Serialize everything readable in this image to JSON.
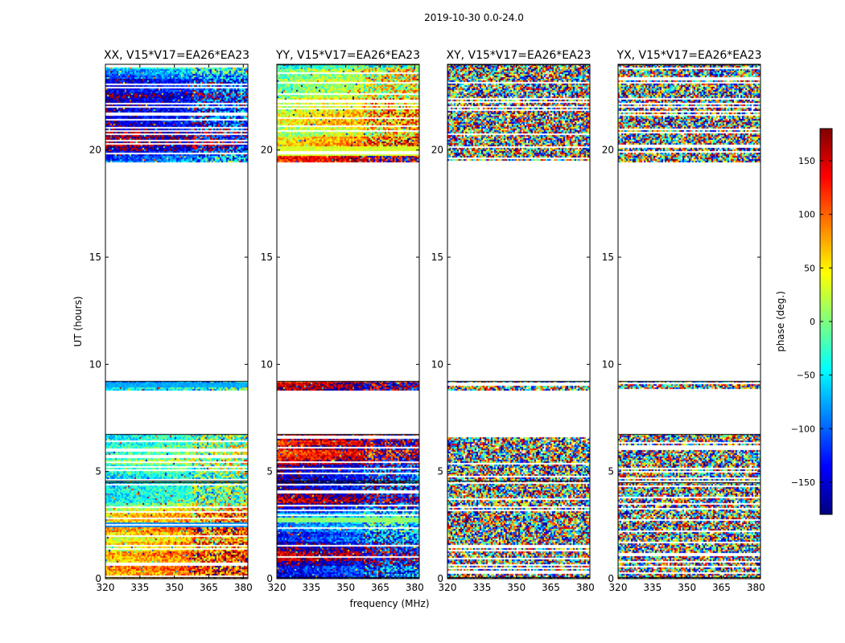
{
  "figure": {
    "suptitle": "2019-10-30 0.0-24.0",
    "xlabel": "frequency (MHz)",
    "ylabel": "UT (hours)"
  },
  "colorbar": {
    "label": "phase (deg.)",
    "range": [
      -180,
      180
    ],
    "ticks": [
      -150,
      -100,
      -50,
      0,
      50,
      100,
      150
    ],
    "tick_labels": [
      "−150",
      "−100",
      "−50",
      "0",
      "50",
      "100",
      "150"
    ],
    "colormap": "jet",
    "colors": [
      "#00007f",
      "#0000ff",
      "#007fff",
      "#00ffff",
      "#7fff7f",
      "#ffff00",
      "#ff7f00",
      "#ff0000",
      "#7f0000"
    ]
  },
  "chart_data": [
    {
      "type": "heatmap",
      "title": "XX, V15*V17=EA26*EA23",
      "xlim": [
        320,
        382
      ],
      "ylim": [
        0,
        24
      ],
      "xticks": [
        320,
        335,
        350,
        365,
        380
      ],
      "yticks": [
        0,
        5,
        10,
        15,
        20
      ],
      "value": "phase (deg.)",
      "data_blocks_ut_hours": [
        [
          0,
          4.5
        ],
        [
          4.5,
          6.75
        ],
        [
          8.75,
          9.2
        ],
        [
          19.4,
          24
        ]
      ],
      "gap_ut_hours": [
        [
          6.75,
          8.75
        ],
        [
          9.2,
          19.4
        ]
      ],
      "character": "coherent phase bands (blue/cyan/green, red stripes near 20-21 h)"
    },
    {
      "type": "heatmap",
      "title": "YY, V15*V17=EA26*EA23",
      "xlim": [
        320,
        382
      ],
      "ylim": [
        0,
        24
      ],
      "xticks": [
        320,
        335,
        350,
        365,
        380
      ],
      "yticks": [
        0,
        5,
        10,
        15,
        20
      ],
      "value": "phase (deg.)",
      "data_blocks_ut_hours": [
        [
          0,
          4.5
        ],
        [
          4.5,
          6.75
        ],
        [
          8.75,
          9.2
        ],
        [
          19.4,
          24
        ]
      ],
      "gap_ut_hours": [
        [
          6.75,
          8.75
        ],
        [
          9.2,
          19.4
        ]
      ],
      "character": "coherent phase bands (blue/red around 3-6 h, cyan/green near 20 h)"
    },
    {
      "type": "heatmap",
      "title": "XY, V15*V17=EA26*EA23",
      "xlim": [
        320,
        382
      ],
      "ylim": [
        0,
        24
      ],
      "xticks": [
        320,
        335,
        350,
        365,
        380
      ],
      "yticks": [
        0,
        5,
        10,
        15,
        20
      ],
      "value": "phase (deg.)",
      "data_blocks_ut_hours": [
        [
          0,
          4.5
        ],
        [
          4.5,
          6.75
        ],
        [
          8.75,
          9.2
        ],
        [
          19.4,
          24
        ]
      ],
      "gap_ut_hours": [
        [
          6.75,
          8.75
        ],
        [
          9.2,
          19.4
        ]
      ],
      "character": "noise-like random phase"
    },
    {
      "type": "heatmap",
      "title": "YX, V15*V17=EA26*EA23",
      "xlim": [
        320,
        382
      ],
      "ylim": [
        0,
        24
      ],
      "xticks": [
        320,
        335,
        350,
        365,
        380
      ],
      "yticks": [
        0,
        5,
        10,
        15,
        20
      ],
      "value": "phase (deg.)",
      "data_blocks_ut_hours": [
        [
          0,
          4.5
        ],
        [
          4.5,
          6.75
        ],
        [
          8.75,
          9.2
        ],
        [
          19.4,
          24
        ]
      ],
      "gap_ut_hours": [
        [
          6.75,
          8.75
        ],
        [
          9.2,
          19.4
        ]
      ],
      "character": "noise-like random phase"
    }
  ]
}
